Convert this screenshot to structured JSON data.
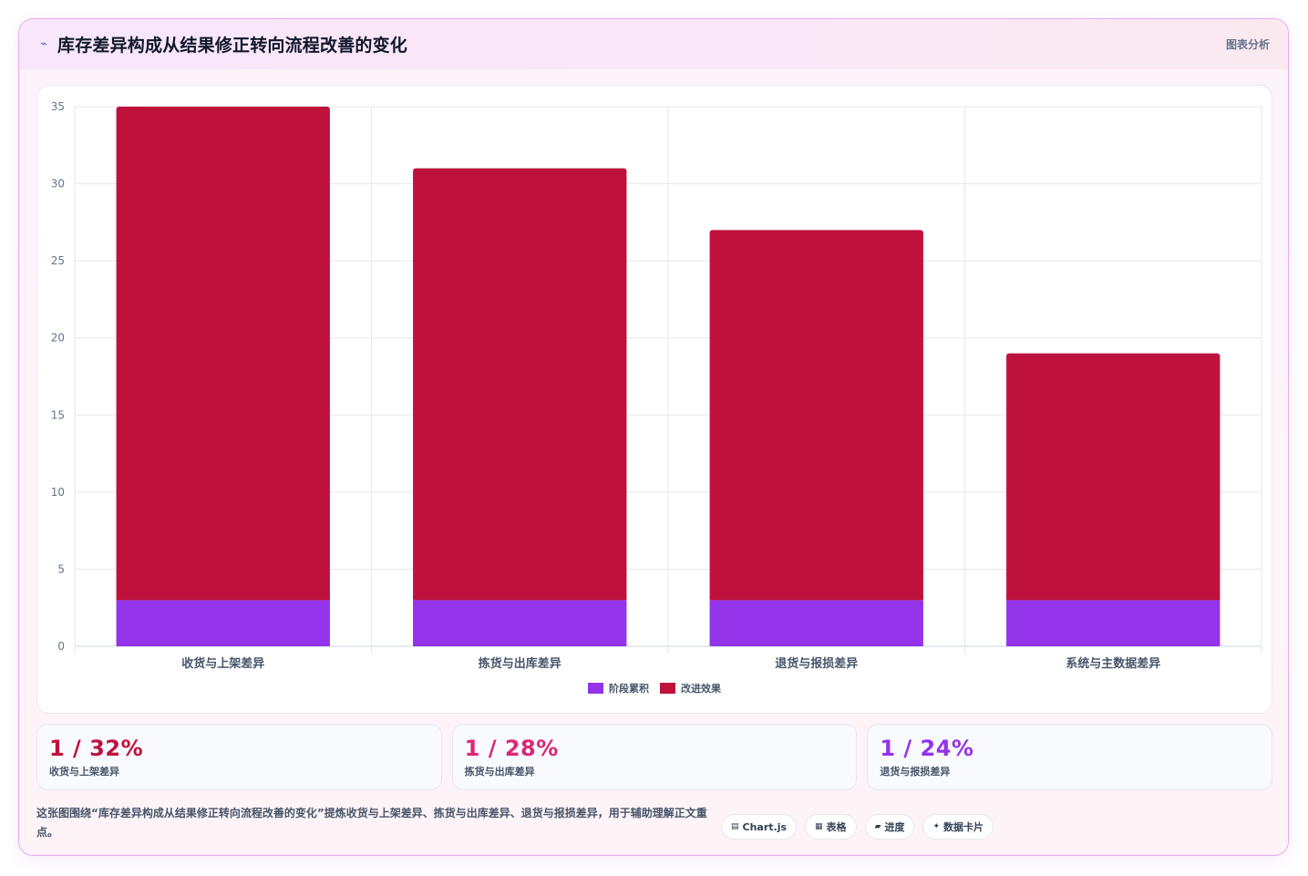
{
  "header": {
    "title": "库存差异构成从结果修正转向流程改善的变化",
    "tag": "图表分析",
    "icon": "line-chart-icon"
  },
  "chart_data": {
    "type": "bar",
    "stacked": true,
    "categories": [
      "收货与上架差异",
      "拣货与出库差异",
      "退货与报损差异",
      "系统与主数据差异"
    ],
    "series": [
      {
        "name": "阶段累积",
        "values": [
          3,
          3,
          3,
          3
        ],
        "color": "#9333ea"
      },
      {
        "name": "改进效果",
        "values": [
          32,
          28,
          24,
          16
        ],
        "color": "#be123c"
      }
    ],
    "ylim": [
      0,
      35
    ],
    "yticks": [
      0,
      5,
      10,
      15,
      20,
      25,
      30,
      35
    ],
    "grid": true,
    "legend": "bottom"
  },
  "stats": [
    {
      "value": "1 / 32%",
      "label": "收货与上架差异",
      "color": "#be123c"
    },
    {
      "value": "1 / 28%",
      "label": "拣货与出库差异",
      "color": "#db2777"
    },
    {
      "value": "1 / 24%",
      "label": "退货与报损差异",
      "color": "#9333ea"
    }
  ],
  "footer": {
    "description": "这张图围绕“库存差异构成从结果修正转向流程改善的变化”提炼收货与上架差异、拣货与出库差异、退货与报损差异，用于辅助理解正文重点。",
    "chips": [
      {
        "icon": "chart-icon",
        "glyph": "▤",
        "label": "Chart.js"
      },
      {
        "icon": "table-icon",
        "glyph": "▦",
        "label": "表格"
      },
      {
        "icon": "progress-icon",
        "glyph": "▰",
        "label": "进度"
      },
      {
        "icon": "data-card-icon",
        "glyph": "✦",
        "label": "数据卡片"
      }
    ]
  }
}
